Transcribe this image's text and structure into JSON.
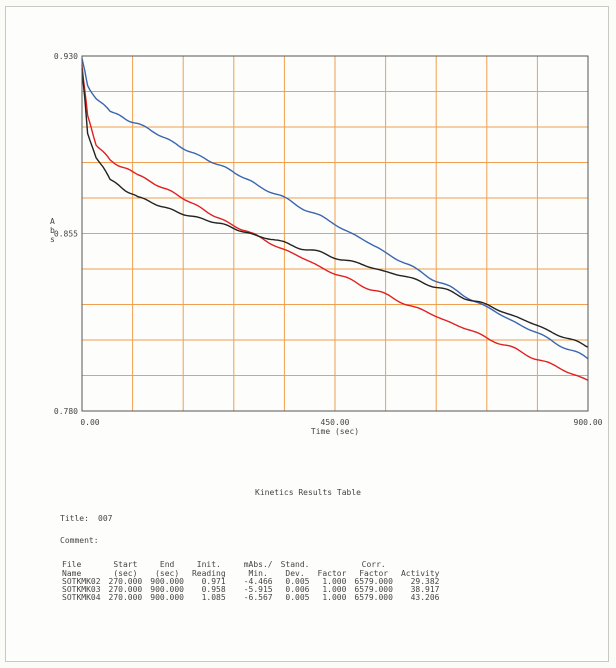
{
  "chart_data": {
    "type": "line",
    "ylabel": "Abs",
    "xlabel": "Time (sec)",
    "xlim": [
      0,
      900
    ],
    "ylim": [
      0.78,
      0.93
    ],
    "x_ticks": [
      "0.00",
      "450.00",
      "900.00"
    ],
    "y_ticks": [
      "0.930",
      "0.855",
      "0.780"
    ],
    "grid": true,
    "series": [
      {
        "color": "#3a66b0",
        "x": [
          0,
          10,
          25,
          50,
          100,
          200,
          300,
          450,
          600,
          750,
          900
        ],
        "y": [
          0.929,
          0.918,
          0.912,
          0.907,
          0.901,
          0.889,
          0.877,
          0.859,
          0.839,
          0.82,
          0.802
        ]
      },
      {
        "color": "#e02020",
        "x": [
          0,
          10,
          25,
          50,
          100,
          200,
          300,
          450,
          600,
          750,
          900
        ],
        "y": [
          0.926,
          0.905,
          0.893,
          0.886,
          0.88,
          0.867,
          0.855,
          0.838,
          0.823,
          0.808,
          0.793
        ]
      },
      {
        "color": "#222222",
        "x": [
          0,
          10,
          25,
          50,
          100,
          200,
          300,
          450,
          600,
          750,
          900
        ],
        "y": [
          0.925,
          0.898,
          0.887,
          0.878,
          0.87,
          0.862,
          0.855,
          0.845,
          0.835,
          0.822,
          0.807
        ]
      }
    ]
  },
  "results": {
    "table_title": "Kinetics Results Table",
    "title_label": "Title:",
    "title_value": "007",
    "comment_label": "Comment:",
    "headers": [
      [
        "File",
        "Name"
      ],
      [
        "Start",
        "(sec)"
      ],
      [
        "End",
        "(sec)"
      ],
      [
        "Init.",
        "Reading"
      ],
      [
        "mAbs./",
        "Min."
      ],
      [
        "Stand.",
        "Dev."
      ],
      [
        "",
        "Factor"
      ],
      [
        "Corr.",
        "Factor"
      ],
      [
        "",
        "Activity"
      ]
    ],
    "rows": [
      [
        "SOTKMK02",
        "270.000",
        "900.000",
        "0.971",
        "-4.466",
        "0.005",
        "1.000",
        "6579.000",
        "29.382"
      ],
      [
        "SOTKMK03",
        "270.000",
        "900.000",
        "0.958",
        "-5.915",
        "0.006",
        "1.000",
        "6579.000",
        "38.917"
      ],
      [
        "SOTKMK04",
        "270.000",
        "900.000",
        "1.085",
        "-6.567",
        "0.005",
        "1.000",
        "6579.000",
        "43.206"
      ]
    ]
  }
}
